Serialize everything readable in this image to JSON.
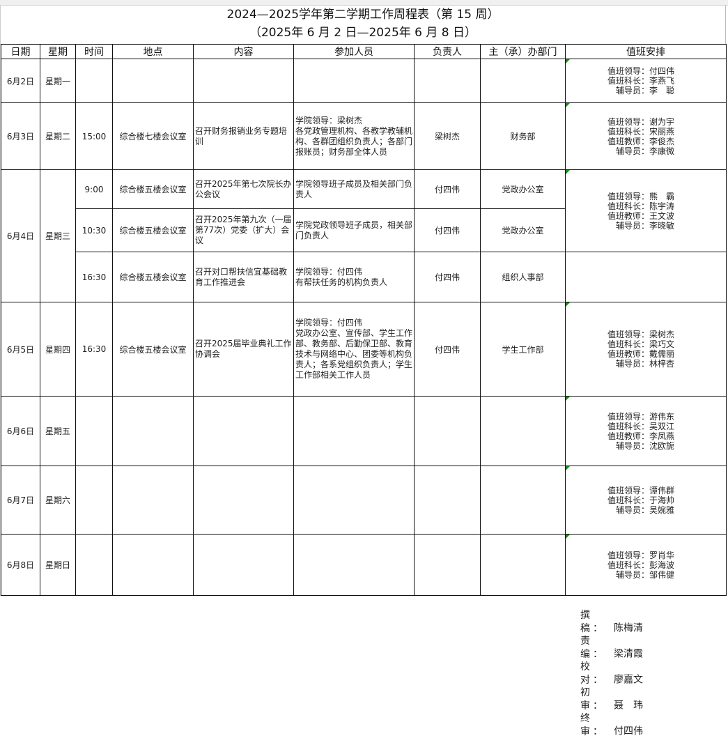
{
  "title": "2024—2025学年第二学期工作周程表（第 15 周）",
  "subtitle": "（2025年 6 月 2 日—2025年 6 月 8 日）",
  "headers": [
    "日期",
    "星期",
    "时间",
    "地点",
    "内容",
    "参加人员",
    "负责人",
    "主（承）办部门",
    "值班安排"
  ],
  "days": [
    {
      "date": "6月2日",
      "weekday": "星期一",
      "events": [],
      "duty": [
        "值班领导：付四伟",
        "值班科长：李燕飞",
        "辅导员：李　聪"
      ]
    },
    {
      "date": "6月3日",
      "weekday": "星期二",
      "events": [
        {
          "time": "15:00",
          "place": "综合楼七楼会议室",
          "content": "召开财务报销业务专题培训",
          "participants": "学院领导：梁树杰\n各党政管理机构、各教学教辅机构、各群团组织负责人；各部门报账员；财务部全体人员",
          "leader": "梁树杰",
          "dept": "财务部"
        }
      ],
      "duty": [
        "值班领导：谢为宇",
        "值班科长：宋丽燕",
        "值班教师：李俊杰",
        "辅导员：李康微"
      ]
    },
    {
      "date": "6月4日",
      "weekday": "星期三",
      "events": [
        {
          "time": "9:00",
          "place": "综合楼五楼会议室",
          "content": "召开2025年第七次院长办公会议",
          "participants": "学院领导班子成员及相关部门负责人",
          "leader": "付四伟",
          "dept": "党政办公室"
        },
        {
          "time": "10:30",
          "place": "综合楼五楼会议室",
          "content": "召开2025年第九次（一届第77次）党委（扩大）会议",
          "participants": "学院党政领导班子成员，相关部门负责人",
          "leader": "付四伟",
          "dept": "党政办公室"
        },
        {
          "time": "16:30",
          "place": "综合楼五楼会议室",
          "content": "召开对口帮扶信宜基础教育工作推进会",
          "participants": "学院领导：付四伟\n有帮扶任务的机构负责人",
          "leader": "付四伟",
          "dept": "组织人事部"
        }
      ],
      "duty": [
        "值班领导：熊　霸",
        "值班科长：陈宇涛",
        "值班教师：王文波",
        "辅导员：李晓敏"
      ]
    },
    {
      "date": "6月5日",
      "weekday": "星期四",
      "events": [
        {
          "time": "16:30",
          "place": "综合楼五楼会议室",
          "content": "召开2025届毕业典礼工作协调会",
          "participants": "学院领导：付四伟\n党政办公室、宣传部、学生工作部、教务部、后勤保卫部、教育技术与网络中心、团委等机构负责人；各系党组织负责人；学生工作部相关工作人员",
          "leader": "付四伟",
          "dept": "学生工作部"
        }
      ],
      "duty": [
        "值班领导：梁树杰",
        "值班科长：梁巧文",
        "值班教师：戴儒丽",
        "辅导员：林梓杏"
      ]
    },
    {
      "date": "6月6日",
      "weekday": "星期五",
      "events": [],
      "duty": [
        "值班领导：游伟东",
        "值班科长：吴双江",
        "值班教师：李凤燕",
        "辅导员：沈欧旎"
      ]
    },
    {
      "date": "6月7日",
      "weekday": "星期六",
      "events": [],
      "duty": [
        "值班领导：谭伟群",
        "值班科长：于海帅",
        "辅导员：吴婉雅"
      ]
    },
    {
      "date": "6月8日",
      "weekday": "星期日",
      "events": [],
      "duty": [
        "值班领导：罗肖华",
        "值班科长：彭海波",
        "辅导员：邹伟健"
      ]
    }
  ],
  "footer": [
    {
      "role": "撰稿：",
      "name": "陈梅清"
    },
    {
      "role": "责编：",
      "name": "梁清霞"
    },
    {
      "role": "校对：",
      "name": "廖嘉文"
    },
    {
      "role": "初审：",
      "name": "聂　玮"
    },
    {
      "role": "终审：",
      "name": "付四伟"
    }
  ],
  "colors": {
    "comment_marker": "#1a8a1a"
  }
}
